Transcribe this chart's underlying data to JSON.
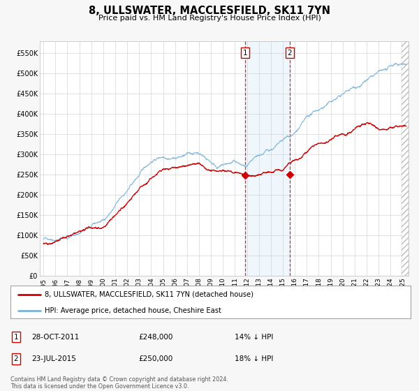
{
  "title": "8, ULLSWATER, MACCLESFIELD, SK11 7YN",
  "subtitle": "Price paid vs. HM Land Registry's House Price Index (HPI)",
  "ylim": [
    0,
    580000
  ],
  "yticks": [
    0,
    50000,
    100000,
    150000,
    200000,
    250000,
    300000,
    350000,
    400000,
    450000,
    500000,
    550000
  ],
  "ytick_labels": [
    "£0",
    "£50K",
    "£100K",
    "£150K",
    "£200K",
    "£250K",
    "£300K",
    "£350K",
    "£400K",
    "£450K",
    "£500K",
    "£550K"
  ],
  "hpi_color": "#7ab3d8",
  "price_color": "#cc0000",
  "background_color": "#f7f7f7",
  "plot_bg_color": "#ffffff",
  "grid_color": "#cccccc",
  "event1_date_num": 2011.83,
  "event1_price": 248000,
  "event1_label": "1",
  "event2_date_num": 2015.56,
  "event2_price": 250000,
  "event2_label": "2",
  "shade_color": "#ddeeff",
  "shade_start": 2011.83,
  "shade_end": 2015.56,
  "legend1_text": "8, ULLSWATER, MACCLESFIELD, SK11 7YN (detached house)",
  "legend2_text": "HPI: Average price, detached house, Cheshire East",
  "table_row1": [
    "1",
    "28-OCT-2011",
    "£248,000",
    "14% ↓ HPI"
  ],
  "table_row2": [
    "2",
    "23-JUL-2015",
    "£250,000",
    "18% ↓ HPI"
  ],
  "footnote": "Contains HM Land Registry data © Crown copyright and database right 2024.\nThis data is licensed under the Open Government Licence v3.0.",
  "xstart": 1994.7,
  "xend": 2025.5,
  "xticks": [
    1995,
    1996,
    1997,
    1998,
    1999,
    2000,
    2001,
    2002,
    2003,
    2004,
    2005,
    2006,
    2007,
    2008,
    2009,
    2010,
    2011,
    2012,
    2013,
    2014,
    2015,
    2016,
    2017,
    2018,
    2019,
    2020,
    2021,
    2022,
    2023,
    2024,
    2025
  ],
  "hatch_start": 2024.92
}
